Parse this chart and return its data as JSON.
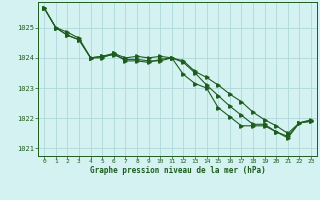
{
  "title": "Graphe pression niveau de la mer (hPa)",
  "background_color": "#d4f2f2",
  "grid_color": "#b0d8d8",
  "line_color": "#1e5c1e",
  "xlim": [
    -0.5,
    23.5
  ],
  "ylim": [
    1020.75,
    1025.85
  ],
  "yticks": [
    1021,
    1022,
    1023,
    1024,
    1025
  ],
  "xticks": [
    0,
    1,
    2,
    3,
    4,
    5,
    6,
    7,
    8,
    9,
    10,
    11,
    12,
    13,
    14,
    15,
    16,
    17,
    18,
    19,
    20,
    21,
    22,
    23
  ],
  "series1": [
    1025.65,
    1025.0,
    1024.85,
    1024.65,
    1024.0,
    1024.05,
    1024.15,
    1024.0,
    1024.05,
    1024.0,
    1024.05,
    1024.0,
    1023.9,
    1023.55,
    1023.35,
    1023.1,
    1022.8,
    1022.55,
    1022.2,
    1021.95,
    1021.75,
    1021.5,
    1021.85,
    1021.95
  ],
  "series2": [
    1025.65,
    1025.0,
    1024.75,
    1024.6,
    1024.0,
    1024.05,
    1024.1,
    1023.95,
    1023.95,
    1023.9,
    1023.9,
    1024.0,
    1023.85,
    1023.5,
    1023.1,
    1022.75,
    1022.4,
    1022.1,
    1021.8,
    1021.8,
    1021.55,
    1021.4,
    1021.85,
    1021.9
  ],
  "series3": [
    1025.65,
    1025.0,
    1024.75,
    1024.6,
    1024.0,
    1024.0,
    1024.15,
    1023.9,
    1023.9,
    1023.85,
    1023.95,
    1024.0,
    1023.45,
    1023.15,
    1023.0,
    1022.35,
    1022.05,
    1021.75,
    1021.75,
    1021.75,
    1021.55,
    1021.35,
    1021.85,
    1021.9
  ]
}
